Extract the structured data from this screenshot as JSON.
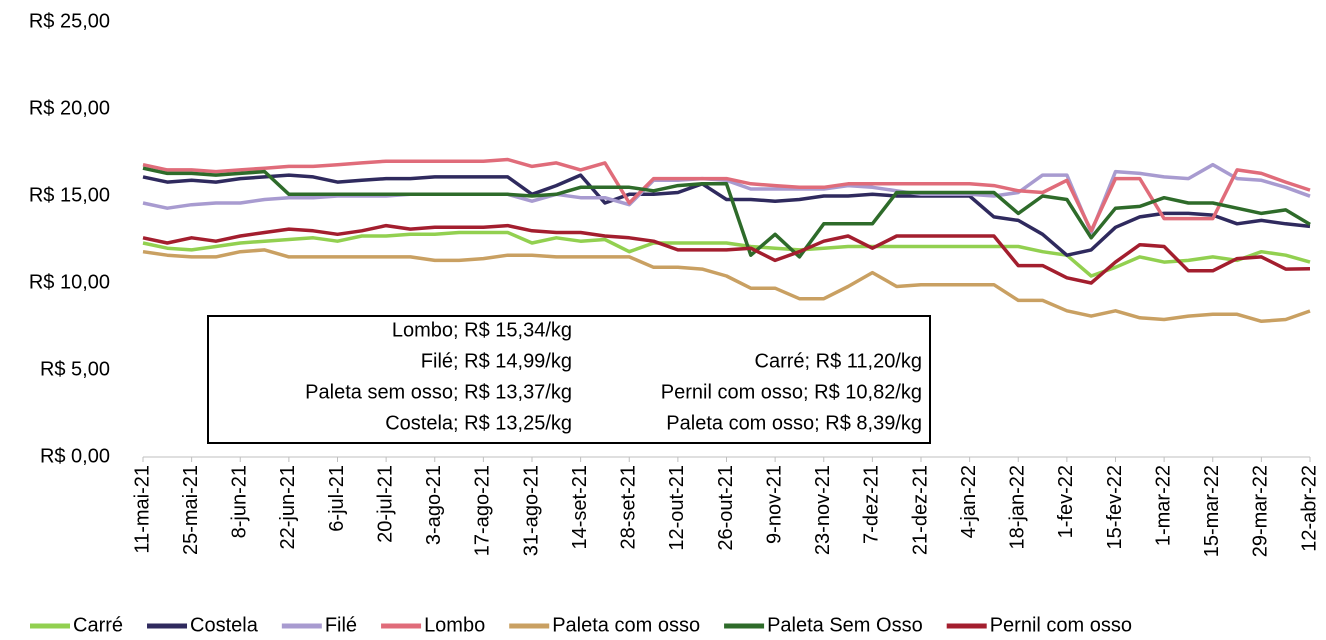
{
  "chart_data": {
    "type": "line",
    "categories": [
      "11-mai-21",
      null,
      "25-mai-21",
      null,
      "8-jun-21",
      null,
      "22-jun-21",
      null,
      "6-jul-21",
      null,
      "20-jul-21",
      null,
      "3-ago-21",
      null,
      "17-ago-21",
      null,
      "31-ago-21",
      null,
      "14-set-21",
      null,
      "28-set-21",
      null,
      "12-out-21",
      null,
      "26-out-21",
      null,
      "9-nov-21",
      null,
      "23-nov-21",
      null,
      "7-dez-21",
      null,
      "21-dez-21",
      null,
      "4-jan-22",
      null,
      "18-jan-22",
      null,
      "1-fev-22",
      null,
      "15-fev-22",
      null,
      "1-mar-22",
      null,
      "15-mar-22",
      null,
      "29-mar-22",
      null,
      "12-abr-22"
    ],
    "ylim": [
      0,
      25
    ],
    "yticks": [
      {
        "value": 0,
        "label": "R$ 0,00"
      },
      {
        "value": 5,
        "label": "R$ 5,00"
      },
      {
        "value": 10,
        "label": "R$ 10,00"
      },
      {
        "value": 15,
        "label": "R$ 15,00"
      },
      {
        "value": 20,
        "label": "R$ 20,00"
      },
      {
        "value": 25,
        "label": "R$ 25,00"
      }
    ],
    "grid": false,
    "legend": "bottom",
    "annotations_left": [
      "Lombo; R$ 15,34/kg",
      "Filé; R$ 14,99/kg",
      "Paleta sem osso; R$ 13,37/kg",
      "Costela; R$ 13,25/kg"
    ],
    "annotations_right": [
      "Carré; R$ 11,20/kg",
      "Pernil com osso; R$ 10,82/kg",
      "Paleta com osso; R$ 8,39/kg"
    ],
    "series": [
      {
        "name": "Carré",
        "color": "#92d050",
        "values": [
          12.3,
          12.0,
          11.9,
          12.1,
          12.3,
          12.4,
          12.5,
          12.6,
          12.4,
          12.7,
          12.7,
          12.8,
          12.8,
          12.9,
          12.9,
          12.9,
          12.3,
          12.6,
          12.4,
          12.5,
          11.8,
          12.3,
          12.3,
          12.3,
          12.3,
          12.1,
          12.0,
          11.9,
          12.0,
          12.1,
          12.1,
          12.1,
          12.1,
          12.1,
          12.1,
          12.1,
          12.1,
          11.8,
          11.6,
          10.4,
          10.9,
          11.5,
          11.2,
          11.3,
          11.5,
          11.3,
          11.8,
          11.6,
          11.2
        ]
      },
      {
        "name": "Costela",
        "color": "#2f2a5e",
        "values": [
          16.1,
          15.8,
          15.9,
          15.8,
          16.0,
          16.1,
          16.2,
          16.1,
          15.8,
          15.9,
          16.0,
          16.0,
          16.1,
          16.1,
          16.1,
          16.1,
          15.1,
          15.6,
          16.2,
          14.6,
          15.1,
          15.1,
          15.2,
          15.7,
          14.8,
          14.8,
          14.7,
          14.8,
          15.0,
          15.0,
          15.1,
          15.0,
          15.0,
          15.0,
          15.0,
          13.8,
          13.6,
          12.8,
          11.6,
          11.9,
          13.2,
          13.8,
          14.0,
          14.0,
          13.9,
          13.4,
          13.6,
          13.4,
          13.25
        ]
      },
      {
        "name": "Filé",
        "color": "#a89bd0",
        "values": [
          14.6,
          14.3,
          14.5,
          14.6,
          14.6,
          14.8,
          14.9,
          14.9,
          15.0,
          15.0,
          15.0,
          15.1,
          15.1,
          15.1,
          15.1,
          15.1,
          14.7,
          15.1,
          14.9,
          14.9,
          14.5,
          15.9,
          15.9,
          16.0,
          15.9,
          15.4,
          15.4,
          15.4,
          15.4,
          15.6,
          15.5,
          15.3,
          15.1,
          15.1,
          15.1,
          15.0,
          15.2,
          16.2,
          16.2,
          12.9,
          16.4,
          16.3,
          16.1,
          16.0,
          16.8,
          16.0,
          15.9,
          15.5,
          14.99
        ]
      },
      {
        "name": "Lombo",
        "color": "#e06c7a",
        "values": [
          16.8,
          16.5,
          16.5,
          16.4,
          16.5,
          16.6,
          16.7,
          16.7,
          16.8,
          16.9,
          17.0,
          17.0,
          17.0,
          17.0,
          17.0,
          17.1,
          16.7,
          16.9,
          16.5,
          16.9,
          14.6,
          16.0,
          16.0,
          16.0,
          16.0,
          15.7,
          15.6,
          15.5,
          15.5,
          15.7,
          15.7,
          15.7,
          15.7,
          15.7,
          15.7,
          15.6,
          15.3,
          15.2,
          15.9,
          13.0,
          16.0,
          16.0,
          13.7,
          13.7,
          13.7,
          16.5,
          16.3,
          15.8,
          15.34
        ]
      },
      {
        "name": "Paleta com osso",
        "color": "#c9a062",
        "values": [
          11.8,
          11.6,
          11.5,
          11.5,
          11.8,
          11.9,
          11.5,
          11.5,
          11.5,
          11.5,
          11.5,
          11.5,
          11.3,
          11.3,
          11.4,
          11.6,
          11.6,
          11.5,
          11.5,
          11.5,
          11.5,
          10.9,
          10.9,
          10.8,
          10.4,
          9.7,
          9.7,
          9.1,
          9.1,
          9.8,
          10.6,
          9.8,
          9.9,
          9.9,
          9.9,
          9.9,
          9.0,
          9.0,
          8.4,
          8.1,
          8.4,
          8.0,
          7.9,
          8.1,
          8.2,
          8.2,
          7.8,
          7.9,
          8.39
        ]
      },
      {
        "name": "Paleta Sem Osso",
        "color": "#2e6b2a",
        "values": [
          16.6,
          16.3,
          16.3,
          16.2,
          16.3,
          16.4,
          15.1,
          15.1,
          15.1,
          15.1,
          15.1,
          15.1,
          15.1,
          15.1,
          15.1,
          15.1,
          15.0,
          15.1,
          15.5,
          15.5,
          15.5,
          15.3,
          15.6,
          15.7,
          15.7,
          11.6,
          12.8,
          11.5,
          13.4,
          13.4,
          13.4,
          15.2,
          15.2,
          15.2,
          15.2,
          15.2,
          14.0,
          15.0,
          14.8,
          12.6,
          14.3,
          14.4,
          14.9,
          14.6,
          14.6,
          14.3,
          14.0,
          14.2,
          13.37
        ]
      },
      {
        "name": "Pernil com osso",
        "color": "#a31e2e",
        "values": [
          12.6,
          12.3,
          12.6,
          12.4,
          12.7,
          12.9,
          13.1,
          13.0,
          12.8,
          13.0,
          13.3,
          13.1,
          13.2,
          13.2,
          13.2,
          13.3,
          13.0,
          12.9,
          12.9,
          12.7,
          12.6,
          12.4,
          11.9,
          11.9,
          11.9,
          12.0,
          11.3,
          11.8,
          12.4,
          12.7,
          12.0,
          12.7,
          12.7,
          12.7,
          12.7,
          12.7,
          11.0,
          11.0,
          10.3,
          10.0,
          11.2,
          12.2,
          12.1,
          10.7,
          10.7,
          11.4,
          11.5,
          10.8,
          10.82
        ]
      }
    ]
  }
}
